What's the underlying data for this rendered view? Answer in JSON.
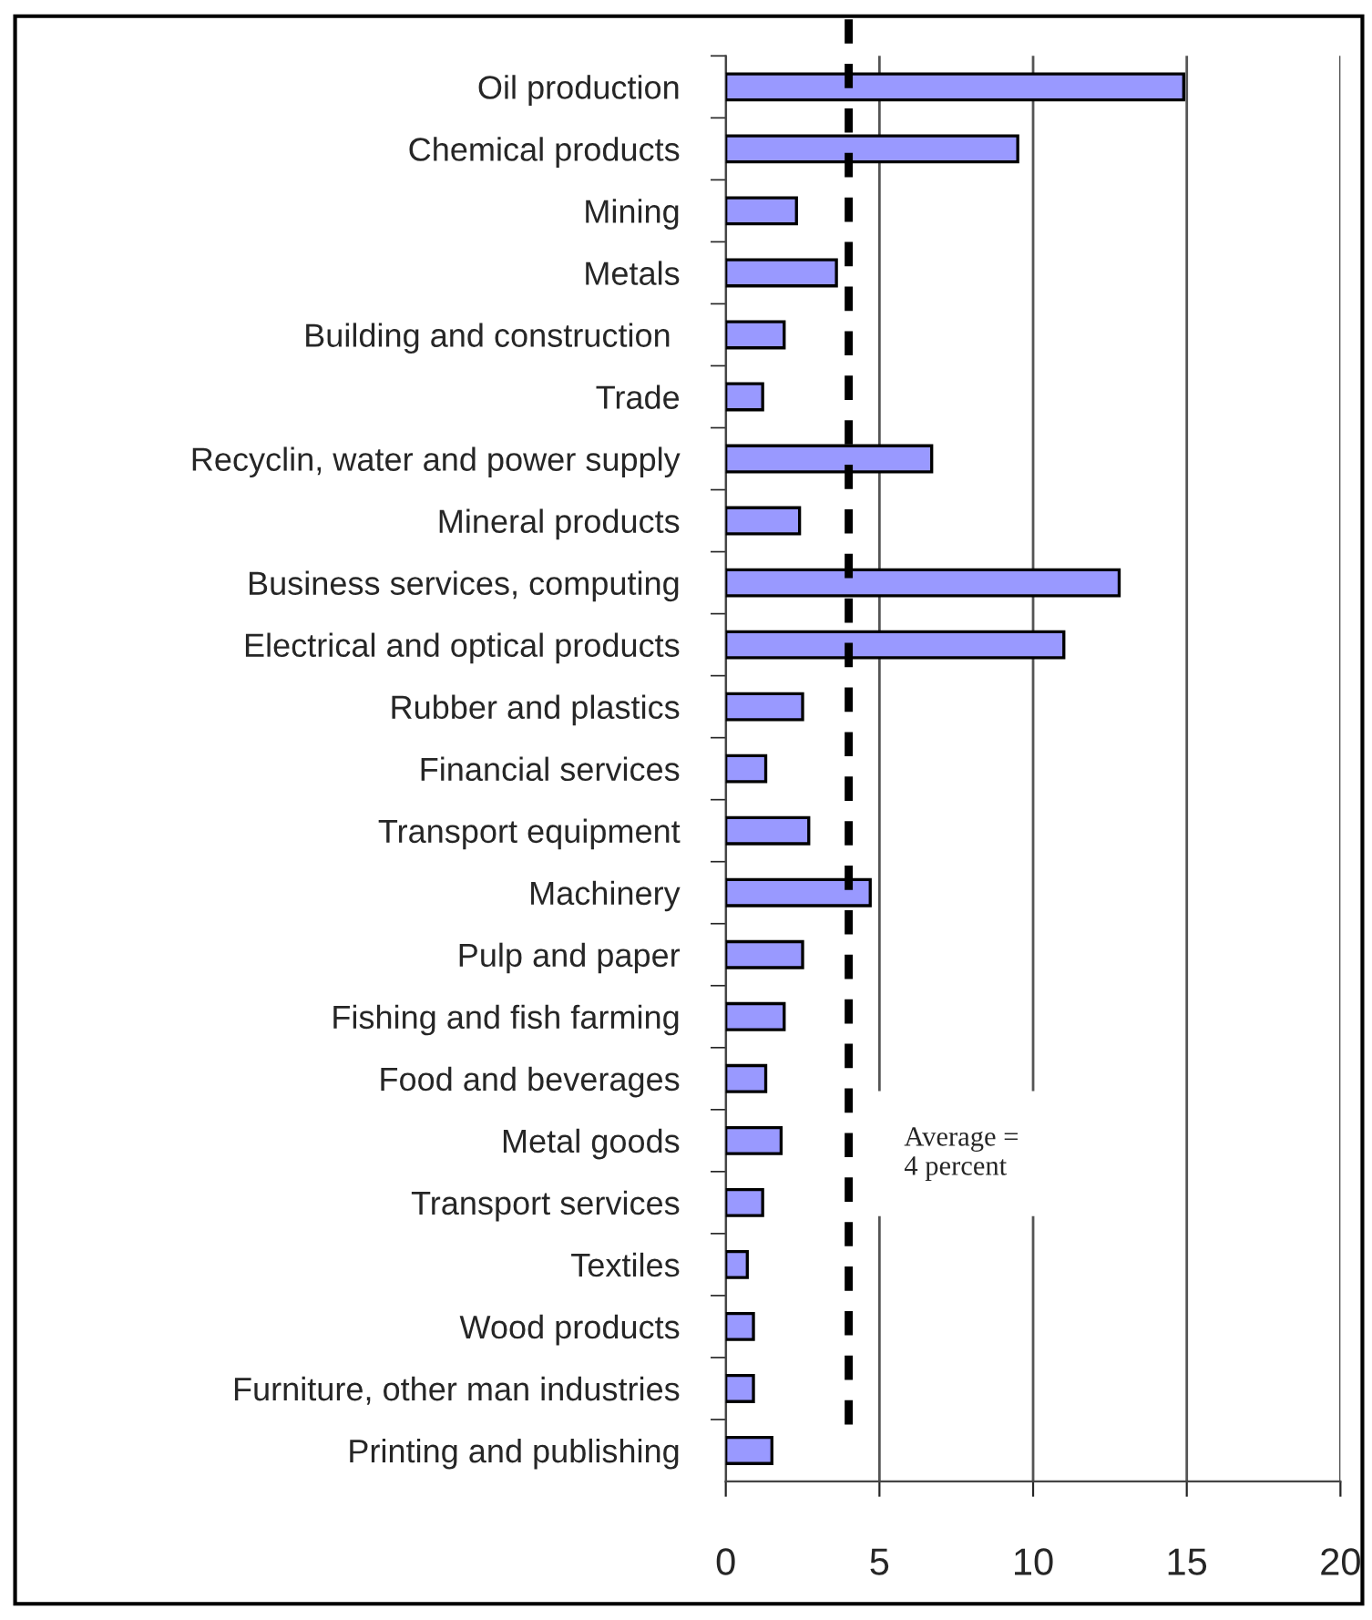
{
  "chart_data": {
    "type": "bar",
    "orientation": "horizontal",
    "categories": [
      "Oil production",
      "Chemical products",
      "Mining",
      "Metals",
      "Building and construction ",
      "Trade",
      "Recyclin, water and power supply",
      "Mineral products",
      "Business services, computing",
      "Electrical and optical products",
      "Rubber and plastics",
      "Financial services",
      "Transport equipment",
      "Machinery",
      "Pulp and paper",
      "Fishing and fish farming",
      "Food and beverages",
      "Metal goods",
      "Transport services",
      "Textiles",
      "Wood products",
      "Furniture, other man industries",
      "Printing and publishing"
    ],
    "values": [
      14.9,
      9.5,
      2.3,
      3.6,
      1.9,
      1.2,
      6.7,
      2.4,
      12.8,
      11.0,
      2.5,
      1.3,
      2.7,
      4.7,
      2.5,
      1.9,
      1.3,
      1.8,
      1.2,
      0.7,
      0.9,
      0.9,
      1.5
    ],
    "color": "#9999ff",
    "xlim": [
      0,
      20
    ],
    "xticks": [
      0,
      5,
      10,
      15,
      20
    ],
    "grid": "x",
    "ref_lines": [
      {
        "axis": "x",
        "value": 4,
        "label": "Average = \n4 percent",
        "color": "#000000",
        "line_style": "dashed"
      }
    ]
  }
}
